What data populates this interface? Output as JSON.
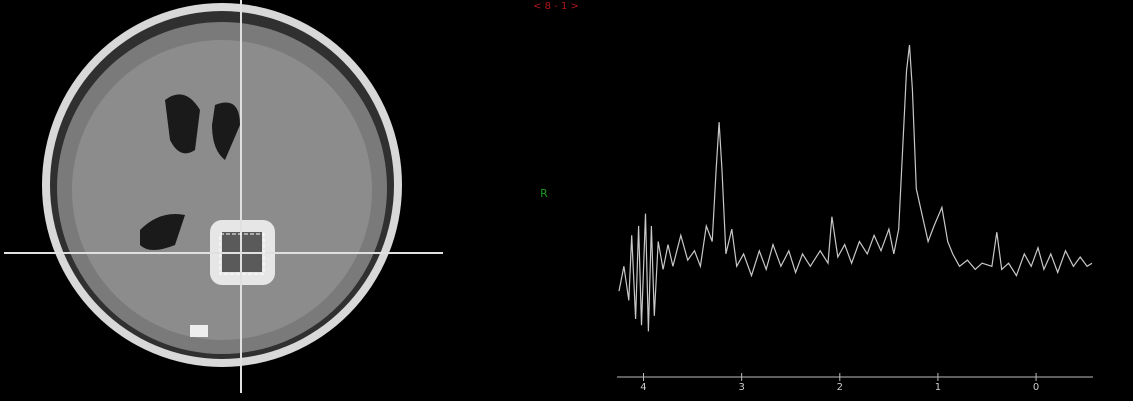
{
  "header": {
    "label": "< 8 - 1 >"
  },
  "orientation_marker": "R",
  "chart_data": {
    "type": "line",
    "color": "#c8c8c8",
    "xlim": [
      4.27,
      -0.58
    ],
    "ylim": [
      0,
      100
    ],
    "xticks": [
      4,
      3,
      2,
      1,
      0
    ],
    "x": [
      4.25,
      4.2,
      4.15,
      4.12,
      4.08,
      4.05,
      4.02,
      3.98,
      3.95,
      3.92,
      3.89,
      3.85,
      3.8,
      3.75,
      3.7,
      3.62,
      3.55,
      3.48,
      3.42,
      3.36,
      3.3,
      3.26,
      3.23,
      3.2,
      3.16,
      3.1,
      3.05,
      2.98,
      2.9,
      2.82,
      2.75,
      2.68,
      2.6,
      2.52,
      2.45,
      2.38,
      2.3,
      2.2,
      2.12,
      2.08,
      2.02,
      1.95,
      1.88,
      1.8,
      1.72,
      1.65,
      1.58,
      1.5,
      1.45,
      1.4,
      1.36,
      1.32,
      1.29,
      1.26,
      1.22,
      1.15,
      1.1,
      1.04,
      0.96,
      0.9,
      0.85,
      0.78,
      0.7,
      0.62,
      0.55,
      0.45,
      0.4,
      0.35,
      0.28,
      0.2,
      0.12,
      0.05,
      -0.02,
      -0.08,
      -0.15,
      -0.22,
      -0.3,
      -0.38,
      -0.45,
      -0.52,
      -0.57
    ],
    "values": [
      19,
      27,
      16,
      37,
      10,
      40,
      8,
      44,
      6,
      40,
      11,
      35,
      26,
      34,
      27,
      37,
      29,
      32,
      27,
      40,
      35,
      58,
      73.5,
      58,
      31,
      39,
      27,
      31,
      24,
      32,
      26,
      34,
      27,
      32,
      25,
      31,
      27,
      32,
      28,
      43,
      30,
      34,
      28,
      35,
      31,
      37,
      32,
      39,
      31,
      39,
      64.5,
      90,
      98.4,
      84,
      52,
      42,
      35,
      40,
      46,
      35,
      31,
      27,
      29,
      26,
      28,
      27,
      38,
      26,
      28,
      24,
      31,
      27,
      33,
      26,
      31,
      25,
      32,
      27,
      30,
      27,
      28
    ]
  }
}
